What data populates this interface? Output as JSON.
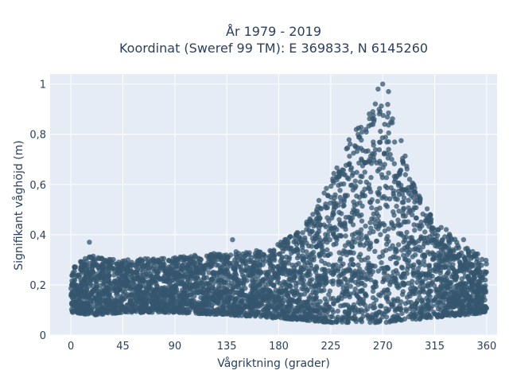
{
  "chart_data": {
    "type": "scatter",
    "title_line1": "År 1979 - 2019",
    "title_line2": "Koordinat (Sweref 99 TM): E 369833, N 6145260",
    "xlabel": "Vågriktning (grader)",
    "ylabel": "Signifikant våghöjd (m)",
    "xlim": [
      -18,
      369
    ],
    "ylim": [
      0,
      1.04
    ],
    "x_ticks": [
      0,
      45,
      90,
      135,
      180,
      225,
      270,
      315,
      360
    ],
    "x_tick_labels": [
      "0",
      "45",
      "90",
      "135",
      "180",
      "225",
      "270",
      "315",
      "360"
    ],
    "y_ticks": [
      0,
      0.2,
      0.4,
      0.6,
      0.8,
      1.0
    ],
    "y_tick_labels": [
      "0",
      "0,2",
      "0,4",
      "0,6",
      "0,8",
      "1"
    ],
    "grid": true,
    "plot_background": "#e5ecf6",
    "marker_color": "#34566e",
    "marker_opacity": 0.75,
    "envelope": {
      "x": [
        0,
        20,
        45,
        90,
        135,
        170,
        200,
        225,
        245,
        260,
        270,
        280,
        295,
        315,
        340,
        360
      ],
      "y_upper": [
        0.28,
        0.32,
        0.3,
        0.31,
        0.33,
        0.34,
        0.42,
        0.62,
        0.82,
        0.9,
        0.96,
        0.88,
        0.62,
        0.45,
        0.36,
        0.3
      ],
      "y_lower": [
        0.09,
        0.08,
        0.09,
        0.09,
        0.08,
        0.07,
        0.06,
        0.05,
        0.05,
        0.05,
        0.05,
        0.05,
        0.06,
        0.07,
        0.08,
        0.09
      ]
    },
    "highlight_points": [
      {
        "x": 270,
        "y": 1.0
      },
      {
        "x": 266,
        "y": 0.98
      },
      {
        "x": 275,
        "y": 0.97
      },
      {
        "x": 16,
        "y": 0.37
      },
      {
        "x": 140,
        "y": 0.38
      },
      {
        "x": 325,
        "y": 0.42
      },
      {
        "x": 340,
        "y": 0.38
      }
    ]
  }
}
